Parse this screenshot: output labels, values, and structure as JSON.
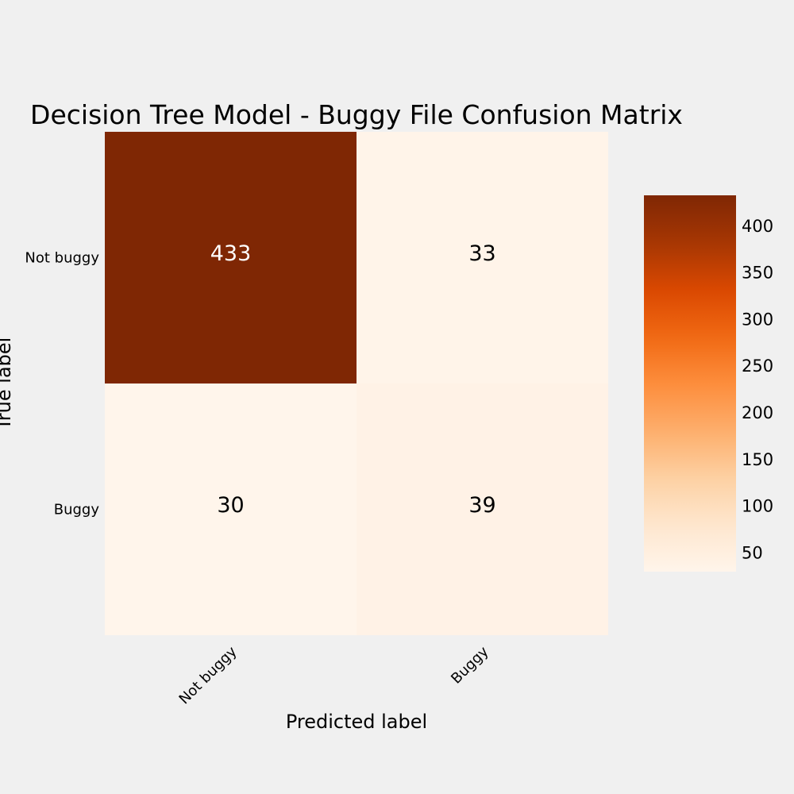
{
  "chart_data": {
    "type": "heatmap",
    "title": "Decision Tree Model - Buggy File Confusion Matrix",
    "xlabel": "Predicted label",
    "ylabel": "True label",
    "x_categories": [
      "Not buggy",
      "Buggy"
    ],
    "y_categories": [
      "Not buggy",
      "Buggy"
    ],
    "matrix": [
      [
        433,
        33
      ],
      [
        30,
        39
      ]
    ],
    "colormap": "Oranges",
    "colorbar": {
      "range": [
        30,
        433
      ],
      "ticks": [
        50,
        100,
        150,
        200,
        250,
        300,
        350,
        400
      ]
    },
    "grid": false
  },
  "colors": {
    "background": "#f0f0f0",
    "text_dark": "#000000",
    "text_light": "#ffffff"
  }
}
